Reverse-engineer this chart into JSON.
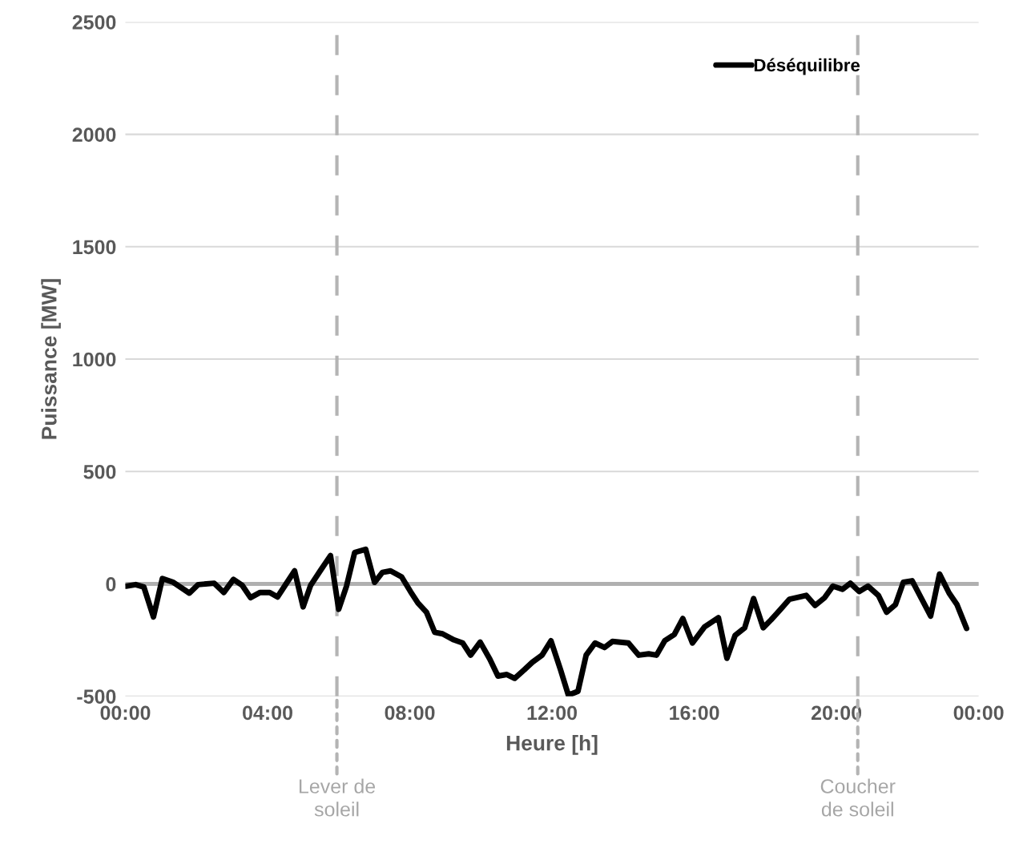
{
  "chart_data": {
    "type": "line",
    "xlabel": "Heure [h]",
    "ylabel": "Puissance [MW]",
    "x": [
      0.02,
      0.29,
      0.52,
      0.79,
      1.04,
      1.35,
      1.8,
      2.05,
      2.5,
      2.77,
      3.04,
      3.29,
      3.52,
      3.79,
      4.06,
      4.28,
      4.76,
      5.0,
      5.21,
      5.48,
      5.77,
      6.0,
      6.22,
      6.45,
      6.76,
      7.01,
      7.23,
      7.46,
      7.77,
      8.02,
      8.23,
      8.47,
      8.7,
      8.92,
      9.24,
      9.49,
      9.71,
      9.98,
      10.25,
      10.48,
      10.73,
      10.95,
      11.22,
      11.45,
      11.72,
      11.97,
      12.24,
      12.46,
      12.73,
      12.96,
      13.21,
      13.48,
      13.7,
      14.15,
      14.44,
      14.72,
      14.94,
      15.17,
      15.44,
      15.68,
      15.95,
      16.29,
      16.68,
      16.92,
      17.15,
      17.42,
      17.67,
      17.94,
      18.16,
      18.43,
      18.68,
      19.15,
      19.4,
      19.67,
      19.9,
      20.17,
      20.39,
      20.64,
      20.89,
      21.18,
      21.41,
      21.66,
      21.88,
      22.13,
      22.65,
      22.9,
      23.17,
      23.39,
      23.66
    ],
    "series": [
      {
        "name": "Déséquilibre",
        "color": "#000000",
        "values": [
          -10,
          -3,
          -14,
          -147,
          24,
          7,
          -41,
          -3,
          3,
          -38,
          20,
          -7,
          -61,
          -38,
          -38,
          -58,
          58,
          -102,
          -7,
          58,
          126,
          -113,
          -10,
          140,
          154,
          7,
          51,
          58,
          31,
          -34,
          -85,
          -126,
          -215,
          -222,
          -249,
          -263,
          -317,
          -259,
          -334,
          -410,
          -403,
          -420,
          -382,
          -348,
          -317,
          -253,
          -382,
          -495,
          -478,
          -317,
          -263,
          -283,
          -256,
          -263,
          -317,
          -311,
          -317,
          -253,
          -225,
          -154,
          -263,
          -191,
          -150,
          -331,
          -229,
          -195,
          -65,
          -195,
          -160,
          -113,
          -68,
          -51,
          -96,
          -61,
          -10,
          -24,
          3,
          -34,
          -10,
          -51,
          -126,
          -92,
          7,
          14,
          -143,
          44,
          -41,
          -92,
          -198
        ]
      }
    ],
    "xlim": [
      0,
      24
    ],
    "xticks": [
      {
        "value": 0,
        "label": "00:00"
      },
      {
        "value": 4,
        "label": "04:00"
      },
      {
        "value": 8,
        "label": "08:00"
      },
      {
        "value": 12,
        "label": "12:00"
      },
      {
        "value": 16,
        "label": "16:00"
      },
      {
        "value": 20,
        "label": "20:00"
      },
      {
        "value": 24,
        "label": "00:00"
      }
    ],
    "ylim": [
      -500,
      2500
    ],
    "yticks": [
      -500,
      0,
      500,
      1000,
      1500,
      2000,
      2500
    ],
    "ref_lines": [
      {
        "axis": "x",
        "value": 5.95,
        "label": "Lever de soleil",
        "color": "#b4b4b4",
        "line_style": "dashed"
      },
      {
        "axis": "x",
        "value": 20.6,
        "label": "Coucher de soleil",
        "color": "#b4b4b4",
        "line_style": "dashed"
      }
    ],
    "grid": "y",
    "legend": "top right",
    "line_style": "solid",
    "marker": "none"
  }
}
